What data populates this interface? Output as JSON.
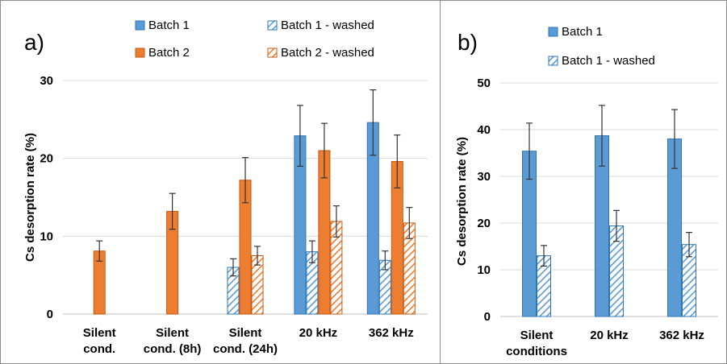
{
  "colors": {
    "batch1": "#5b9bd5",
    "batch1_edge": "#2e75b6",
    "batch2": "#ed7d31",
    "batch2_edge": "#c55a11"
  },
  "chart_data": [
    {
      "type": "bar",
      "panel_label": "a)",
      "title": "",
      "xlabel": "",
      "ylabel": "Cs desorption rate (%)",
      "ylim": [
        0,
        30
      ],
      "yticks": [
        0,
        10,
        20,
        30
      ],
      "grid": true,
      "legend_position": "top",
      "categories": [
        [
          "Silent",
          "cond."
        ],
        [
          "Silent",
          "cond. (8h)"
        ],
        [
          "Silent",
          "cond. (24h)"
        ],
        [
          "20 kHz"
        ],
        [
          "362 kHz"
        ]
      ],
      "series": [
        {
          "name": "Batch 1",
          "color": "#5b9bd5",
          "pattern": "solid",
          "values": [
            null,
            null,
            null,
            22.9,
            24.6
          ],
          "errors": [
            null,
            null,
            null,
            3.9,
            4.2
          ]
        },
        {
          "name": "Batch 1 - washed",
          "color": "#5b9bd5",
          "pattern": "hatch",
          "values": [
            null,
            null,
            6.0,
            8.0,
            6.9
          ],
          "errors": [
            null,
            null,
            1.1,
            1.4,
            1.2
          ]
        },
        {
          "name": "Batch 2",
          "color": "#ed7d31",
          "pattern": "solid",
          "values": [
            8.1,
            13.2,
            17.2,
            21.0,
            19.6
          ],
          "errors": [
            1.3,
            2.3,
            2.9,
            3.5,
            3.4
          ]
        },
        {
          "name": "Batch 2 - washed",
          "color": "#ed7d31",
          "pattern": "hatch",
          "values": [
            null,
            null,
            7.5,
            11.9,
            11.7
          ],
          "errors": [
            null,
            null,
            1.2,
            2.0,
            2.0
          ]
        }
      ]
    },
    {
      "type": "bar",
      "panel_label": "b)",
      "title": "",
      "xlabel": "",
      "ylabel": "Cs desorption rate (%)",
      "ylim": [
        0,
        50
      ],
      "yticks": [
        0,
        10,
        20,
        30,
        40,
        50
      ],
      "grid": true,
      "legend_position": "top",
      "categories": [
        [
          "Silent",
          "conditions"
        ],
        [
          "20 kHz"
        ],
        [
          "362 kHz"
        ]
      ],
      "series": [
        {
          "name": "Batch 1",
          "color": "#5b9bd5",
          "pattern": "solid",
          "values": [
            35.4,
            38.7,
            38.0
          ],
          "errors": [
            6.0,
            6.5,
            6.3
          ]
        },
        {
          "name": "Batch 1 - washed",
          "color": "#5b9bd5",
          "pattern": "hatch",
          "values": [
            13.0,
            19.4,
            15.4
          ],
          "errors": [
            2.2,
            3.3,
            2.6
          ]
        }
      ]
    }
  ]
}
